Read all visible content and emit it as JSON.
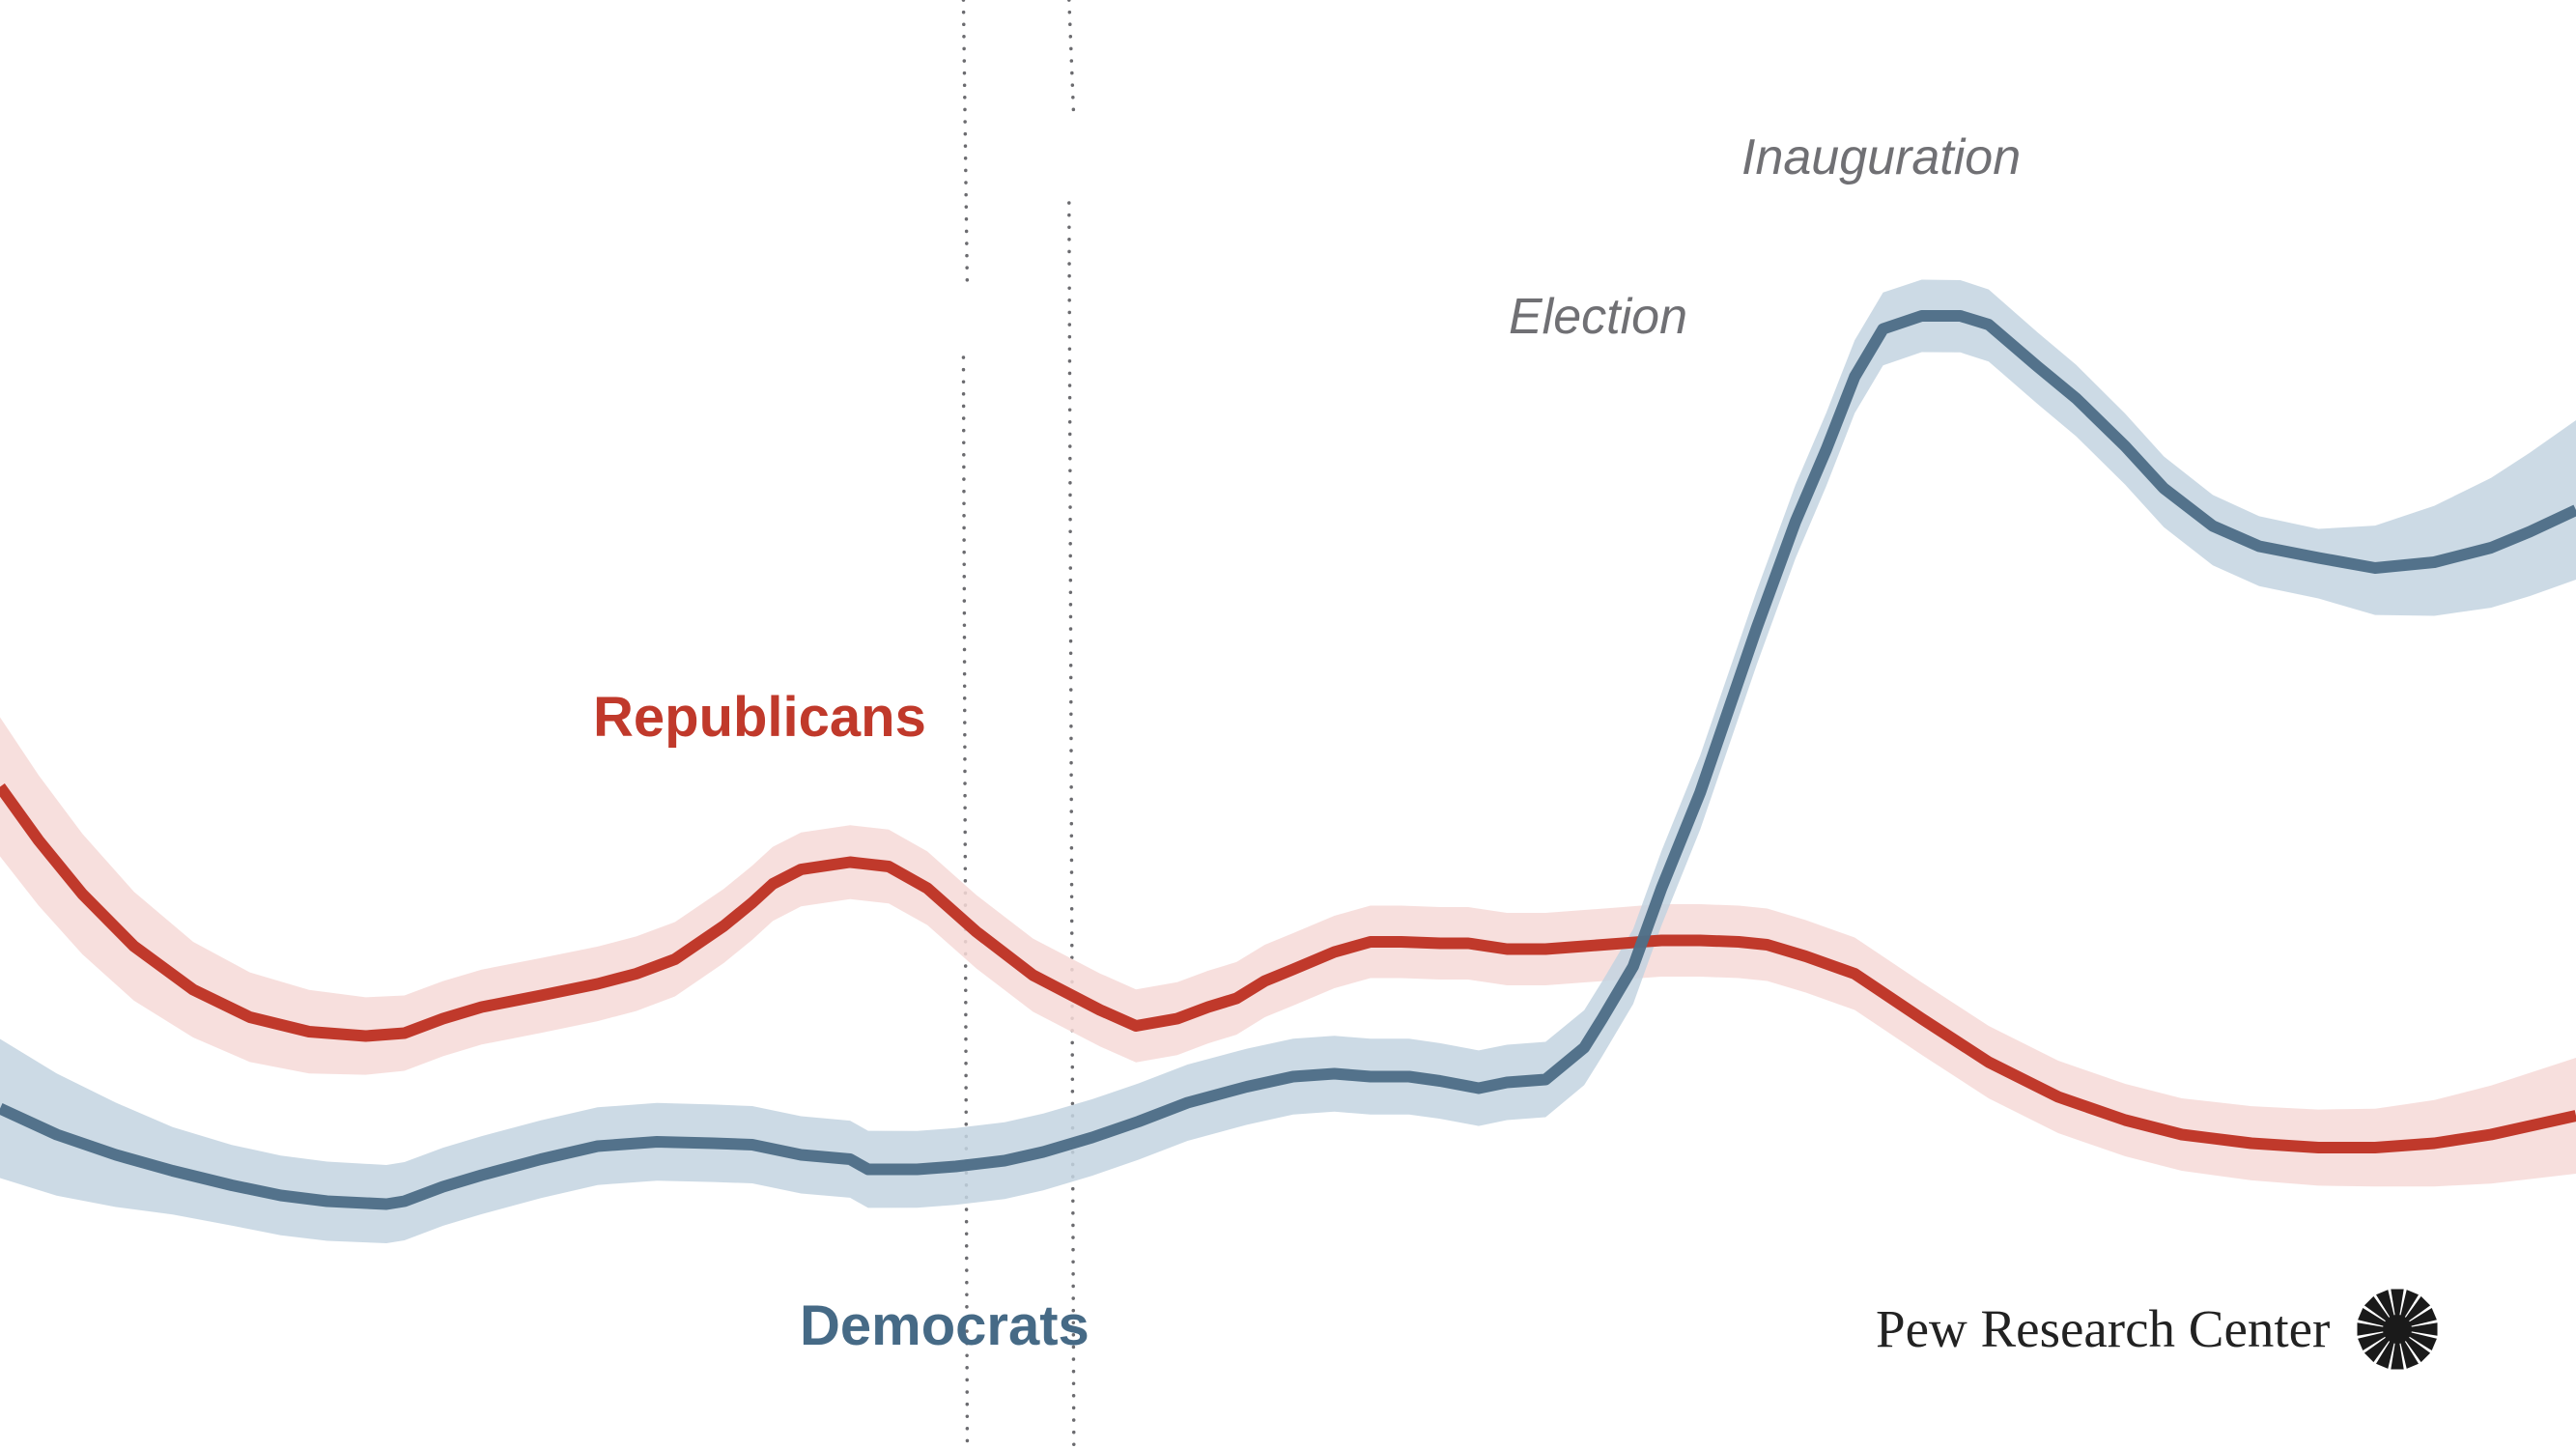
{
  "chart_data": {
    "type": "line",
    "title": "",
    "xlabel": "",
    "ylabel": "",
    "x_units": "relative time index (0 = start, 1 = end)",
    "y_units": "relative level (0-100, no axis shown)",
    "xlim": [
      0,
      1
    ],
    "ylim": [
      0,
      100
    ],
    "grid": false,
    "axes_visible": false,
    "annotations": [
      {
        "label": "Election",
        "x": 0.374
      },
      {
        "label": "Inauguration",
        "x": 0.415
      }
    ],
    "series": [
      {
        "name": "Republicans",
        "color": "#c0392b",
        "band_color": "#f6d9d7",
        "points": [
          [
            0.0,
            45.7
          ],
          [
            0.015,
            42.0
          ],
          [
            0.032,
            38.3
          ],
          [
            0.052,
            34.7
          ],
          [
            0.075,
            31.7
          ],
          [
            0.097,
            29.8
          ],
          [
            0.12,
            28.8
          ],
          [
            0.142,
            28.5
          ],
          [
            0.157,
            28.7
          ],
          [
            0.172,
            29.7
          ],
          [
            0.187,
            30.5
          ],
          [
            0.21,
            31.3
          ],
          [
            0.232,
            32.1
          ],
          [
            0.247,
            32.8
          ],
          [
            0.262,
            33.8
          ],
          [
            0.281,
            36.1
          ],
          [
            0.292,
            37.7
          ],
          [
            0.3,
            39.0
          ],
          [
            0.311,
            40.0
          ],
          [
            0.33,
            40.5
          ],
          [
            0.345,
            40.2
          ],
          [
            0.36,
            38.7
          ],
          [
            0.379,
            35.7
          ],
          [
            0.401,
            32.7
          ],
          [
            0.427,
            30.3
          ],
          [
            0.441,
            29.2
          ],
          [
            0.457,
            29.7
          ],
          [
            0.469,
            30.5
          ],
          [
            0.48,
            31.1
          ],
          [
            0.491,
            32.3
          ],
          [
            0.502,
            33.1
          ],
          [
            0.518,
            34.3
          ],
          [
            0.532,
            35.0
          ],
          [
            0.544,
            35.0
          ],
          [
            0.559,
            34.9
          ],
          [
            0.57,
            34.9
          ],
          [
            0.585,
            34.5
          ],
          [
            0.6,
            34.5
          ],
          [
            0.615,
            34.7
          ],
          [
            0.63,
            34.9
          ],
          [
            0.637,
            35.0
          ],
          [
            0.645,
            35.1
          ],
          [
            0.66,
            35.1
          ],
          [
            0.675,
            35.0
          ],
          [
            0.686,
            34.8
          ],
          [
            0.701,
            34.0
          ],
          [
            0.72,
            32.8
          ],
          [
            0.746,
            29.7
          ],
          [
            0.772,
            26.7
          ],
          [
            0.799,
            24.3
          ],
          [
            0.825,
            22.7
          ],
          [
            0.847,
            21.7
          ],
          [
            0.874,
            21.1
          ],
          [
            0.9,
            20.8
          ],
          [
            0.922,
            20.8
          ],
          [
            0.945,
            21.1
          ],
          [
            0.967,
            21.7
          ],
          [
            1.0,
            23.0
          ]
        ],
        "band_halfwidth": [
          [
            0.0,
            4.8
          ],
          [
            0.075,
            3.3
          ],
          [
            0.15,
            2.6
          ],
          [
            0.5,
            2.5
          ],
          [
            0.85,
            2.5
          ],
          [
            0.93,
            2.7
          ],
          [
            1.0,
            4.0
          ]
        ]
      },
      {
        "name": "Democrats",
        "color": "#4e6e87",
        "band_color": "#c3d4e0",
        "points": [
          [
            0.0,
            23.5
          ],
          [
            0.022,
            21.7
          ],
          [
            0.045,
            20.3
          ],
          [
            0.067,
            19.2
          ],
          [
            0.09,
            18.2
          ],
          [
            0.109,
            17.5
          ],
          [
            0.127,
            17.1
          ],
          [
            0.15,
            16.9
          ],
          [
            0.157,
            17.1
          ],
          [
            0.172,
            18.1
          ],
          [
            0.187,
            18.9
          ],
          [
            0.21,
            20.0
          ],
          [
            0.232,
            20.9
          ],
          [
            0.255,
            21.2
          ],
          [
            0.277,
            21.1
          ],
          [
            0.292,
            21.0
          ],
          [
            0.311,
            20.3
          ],
          [
            0.33,
            20.0
          ],
          [
            0.337,
            19.3
          ],
          [
            0.356,
            19.3
          ],
          [
            0.371,
            19.5
          ],
          [
            0.39,
            19.9
          ],
          [
            0.405,
            20.5
          ],
          [
            0.424,
            21.5
          ],
          [
            0.442,
            22.6
          ],
          [
            0.461,
            23.9
          ],
          [
            0.484,
            25.0
          ],
          [
            0.502,
            25.7
          ],
          [
            0.518,
            25.9
          ],
          [
            0.532,
            25.7
          ],
          [
            0.547,
            25.7
          ],
          [
            0.559,
            25.4
          ],
          [
            0.574,
            24.9
          ],
          [
            0.585,
            25.3
          ],
          [
            0.6,
            25.5
          ],
          [
            0.615,
            27.7
          ],
          [
            0.622,
            29.7
          ],
          [
            0.634,
            33.3
          ],
          [
            0.645,
            38.7
          ],
          [
            0.66,
            45.3
          ],
          [
            0.682,
            56.7
          ],
          [
            0.697,
            64.0
          ],
          [
            0.709,
            69.0
          ],
          [
            0.72,
            74.0
          ],
          [
            0.731,
            77.3
          ],
          [
            0.746,
            78.2
          ],
          [
            0.761,
            78.2
          ],
          [
            0.772,
            77.6
          ],
          [
            0.791,
            74.7
          ],
          [
            0.806,
            72.5
          ],
          [
            0.825,
            69.2
          ],
          [
            0.84,
            66.3
          ],
          [
            0.859,
            63.7
          ],
          [
            0.877,
            62.3
          ],
          [
            0.9,
            61.5
          ],
          [
            0.922,
            60.8
          ],
          [
            0.945,
            61.2
          ],
          [
            0.967,
            62.2
          ],
          [
            0.982,
            63.3
          ],
          [
            1.0,
            64.8
          ]
        ],
        "band_lower": [
          [
            0.0,
            4.8
          ],
          [
            0.075,
            2.8
          ],
          [
            0.15,
            2.7
          ],
          [
            0.6,
            2.6
          ],
          [
            0.75,
            2.5
          ],
          [
            0.9,
            2.8
          ],
          [
            1.0,
            4.8
          ]
        ],
        "band_upper": [
          [
            0.0,
            4.8
          ],
          [
            0.075,
            2.8
          ],
          [
            0.15,
            2.7
          ],
          [
            0.6,
            2.6
          ],
          [
            0.75,
            2.5
          ],
          [
            0.9,
            2.0
          ],
          [
            1.0,
            6.2
          ]
        ]
      }
    ],
    "legend": [
      {
        "label": "Republicans",
        "color": "#c0392b",
        "placement": "inline-left-center"
      },
      {
        "label": "Democrats",
        "color": "#466a86",
        "placement": "inline-bottom-left"
      }
    ]
  },
  "labels": {
    "republicans": "Republicans",
    "democrats": "Democrats",
    "election": "Election",
    "inauguration": "Inauguration"
  },
  "branding": {
    "logo_text": "Pew Research Center",
    "logo_icon": "sunburst-icon"
  }
}
